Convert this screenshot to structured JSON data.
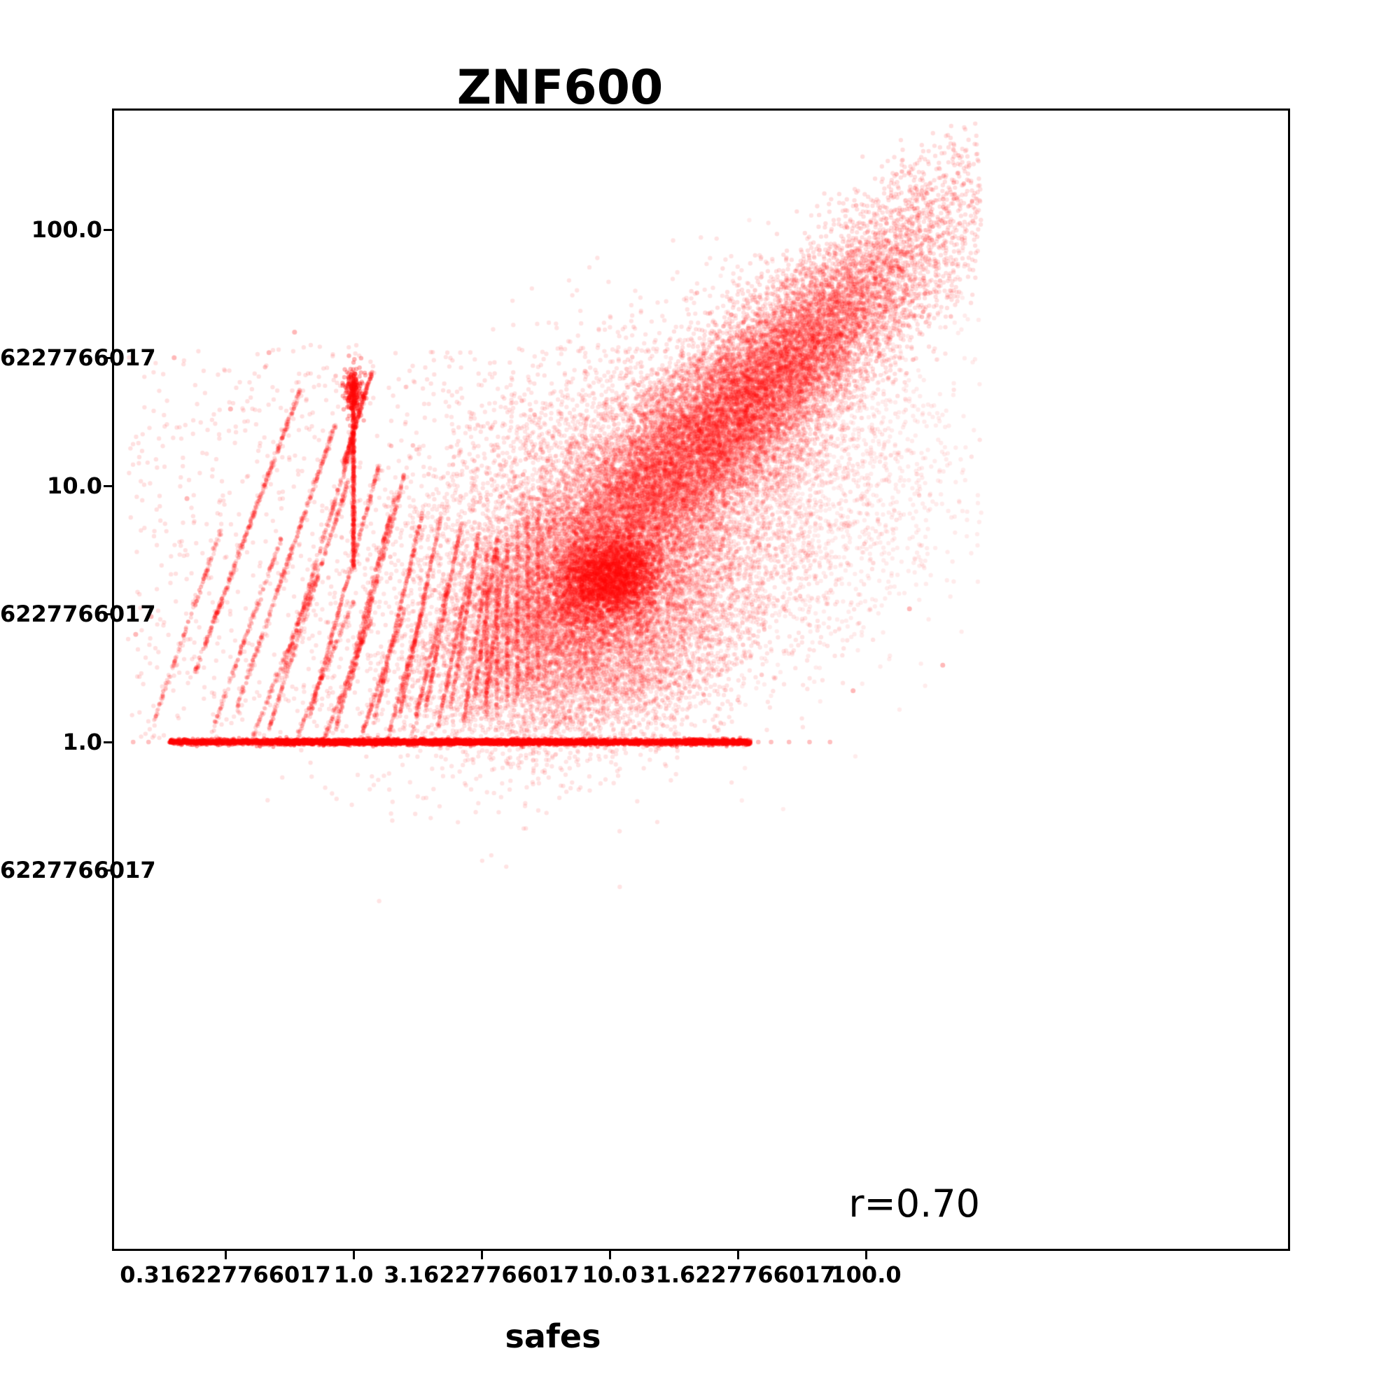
{
  "page": {
    "background": "#ffffff"
  },
  "chart_data": {
    "type": "scatter",
    "title": "ZNF600",
    "xlabel": "safes",
    "ylabel": "",
    "x_scale": "log",
    "y_scale": "log",
    "correlation_label": "r=0.70",
    "marker_color": "#ff0000",
    "x_ticks": [
      {
        "label": "0.316227766017",
        "log10": -0.5
      },
      {
        "label": "1.0",
        "log10": 0
      },
      {
        "label": "3.16227766017",
        "log10": 0.5
      },
      {
        "label": "10.0",
        "log10": 1
      },
      {
        "label": "31.6227766017",
        "log10": 1.5
      },
      {
        "label": "100.0",
        "log10": 2
      }
    ],
    "y_ticks": [
      {
        "label": "100.0",
        "log10": 2
      },
      {
        "label": "6227766017",
        "log10": 1.5
      },
      {
        "label": "10.0",
        "log10": 1
      },
      {
        "label": "6227766017",
        "log10": 0.5
      },
      {
        "label": "1.0",
        "log10": 0
      },
      {
        "label": "6227766017",
        "log10": -0.5
      }
    ],
    "y_tick_labels_truncated_at_image_edge": true,
    "x_log10_range": [
      -0.94,
      3.65
    ],
    "y_log10_range": [
      -1.98,
      2.47
    ],
    "legend": null,
    "grid": false,
    "visual_features": [
      "dense red correlated cloud rising diagonally from about (x=3,y=2) to (x=200,y=200)",
      "very dense horizontal band of points along y=1.0 spanning x from about 0.14 to 50",
      "fan of steep diagonal discrete stripes in the lower-left quadrant between x=0.15 and x=6",
      "dense vertical line of points at x=1.0 between y of about 5 and 26",
      "sparse pale isolated points scattered around the stripe region and to the right of the cloud",
      "annotation r=0.70 in the lower right of the axes"
    ],
    "generation": {
      "seed": 1337,
      "marker_radius": 3.2,
      "clip": {
        "x_log_max": 2.45,
        "y_log_max": 2.42
      },
      "clusters": [
        {
          "cx": 1.52,
          "cy": 1.32,
          "sx": 0.42,
          "sy": 0.4,
          "rho": 0.9,
          "n": 15000,
          "alpha": 0.13
        },
        {
          "cx": 1.02,
          "cy": 0.85,
          "sx": 0.4,
          "sy": 0.36,
          "rho": 0.45,
          "n": 9000,
          "alpha": 0.11
        },
        {
          "cx": 0.95,
          "cy": 0.42,
          "sx": 0.3,
          "sy": 0.22,
          "rho": 0.25,
          "n": 6500,
          "alpha": 0.11
        },
        {
          "cx": 1.0,
          "cy": 0.64,
          "sx": 0.1,
          "sy": 0.085,
          "rho": 0.2,
          "n": 2400,
          "alpha": 0.2
        },
        {
          "cx": 1.7,
          "cy": 0.95,
          "sx": 0.36,
          "sy": 0.33,
          "rho": 0.3,
          "n": 2200,
          "alpha": 0.08
        },
        {
          "cx": 0.0,
          "cy": 1.37,
          "sx": 0.018,
          "sy": 0.05,
          "rho": 0.0,
          "n": 220,
          "alpha": 0.3
        }
      ],
      "stripes": {
        "alpha": 0.15,
        "jitter": 0.006,
        "segments": [
          [
            -0.78,
            0.08,
            -0.52,
            0.82,
            150
          ],
          [
            -0.62,
            0.27,
            -0.21,
            1.37,
            400
          ],
          [
            -0.56,
            0.02,
            -0.28,
            0.8,
            160
          ],
          [
            -0.46,
            0.12,
            -0.07,
            1.24,
            320
          ],
          [
            -0.4,
            0.0,
            -0.14,
            0.66,
            150
          ],
          [
            -0.33,
            0.05,
            -0.02,
            1.02,
            260
          ],
          [
            -0.28,
            0.25,
            0.0,
            1.18,
            240
          ],
          [
            -0.22,
            0.02,
            0.0,
            0.55,
            140
          ],
          [
            -0.17,
            0.1,
            0.1,
            1.08,
            280
          ],
          [
            -0.12,
            0.0,
            0.07,
            0.48,
            140
          ],
          [
            -0.07,
            0.05,
            0.16,
            0.95,
            260
          ],
          [
            -0.02,
            0.2,
            0.2,
            1.05,
            250
          ],
          [
            0.03,
            0.02,
            0.2,
            0.52,
            150
          ],
          [
            0.08,
            0.08,
            0.27,
            0.9,
            240
          ],
          [
            0.13,
            0.0,
            0.28,
            0.55,
            150
          ],
          [
            0.18,
            0.1,
            0.34,
            0.88,
            230
          ],
          [
            0.23,
            0.04,
            0.37,
            0.62,
            160
          ],
          [
            0.28,
            0.12,
            0.42,
            0.85,
            220
          ],
          [
            0.33,
            0.06,
            0.45,
            0.65,
            150
          ],
          [
            0.38,
            0.14,
            0.49,
            0.82,
            200
          ],
          [
            0.43,
            0.08,
            0.52,
            0.68,
            140
          ],
          [
            0.47,
            0.16,
            0.56,
            0.8,
            160
          ],
          [
            0.51,
            0.12,
            0.59,
            0.72,
            130
          ],
          [
            0.52,
            0.1,
            0.52,
            0.75,
            130
          ],
          [
            0.56,
            0.12,
            0.56,
            0.78,
            130
          ],
          [
            0.6,
            0.15,
            0.6,
            0.8,
            130
          ],
          [
            0.64,
            0.18,
            0.64,
            0.85,
            120
          ],
          [
            0.68,
            0.2,
            0.68,
            0.88,
            120
          ],
          [
            0.72,
            0.22,
            0.72,
            0.9,
            110
          ],
          [
            -0.04,
            1.08,
            0.07,
            1.44,
            280
          ],
          [
            0.0,
            0.68,
            0.0,
            1.42,
            600
          ]
        ]
      },
      "band": {
        "y_log10": 0,
        "n": 7000,
        "alpha": 0.35,
        "y_jitter": 0.005,
        "x_main_range": [
          -0.72,
          1.35
        ],
        "x_mid_range": [
          -0.3,
          0.95
        ],
        "x_tail_range": [
          1.3,
          1.55
        ],
        "outliers": [
          [
            -0.86,
            0
          ],
          [
            -0.8,
            0
          ],
          [
            1.58,
            0
          ],
          [
            1.63,
            0
          ],
          [
            1.7,
            0
          ],
          [
            1.78,
            0
          ],
          [
            1.86,
            0
          ]
        ]
      },
      "sparse_field": {
        "n": 900,
        "x_range": [
          -0.88,
          0.75
        ],
        "y_range": [
          0.0,
          1.55
        ],
        "alpha": 0.12
      },
      "extra_points": [
        [
          -0.85,
          0.42
        ],
        [
          -0.79,
          0.49
        ],
        [
          -0.7,
          1.5
        ],
        [
          -0.33,
          1.52
        ],
        [
          -0.23,
          1.6
        ],
        [
          -0.48,
          1.3
        ],
        [
          2.17,
          0.52
        ],
        [
          2.3,
          0.3
        ],
        [
          1.95,
          0.2
        ],
        [
          -0.65,
          0.95
        ]
      ]
    }
  }
}
